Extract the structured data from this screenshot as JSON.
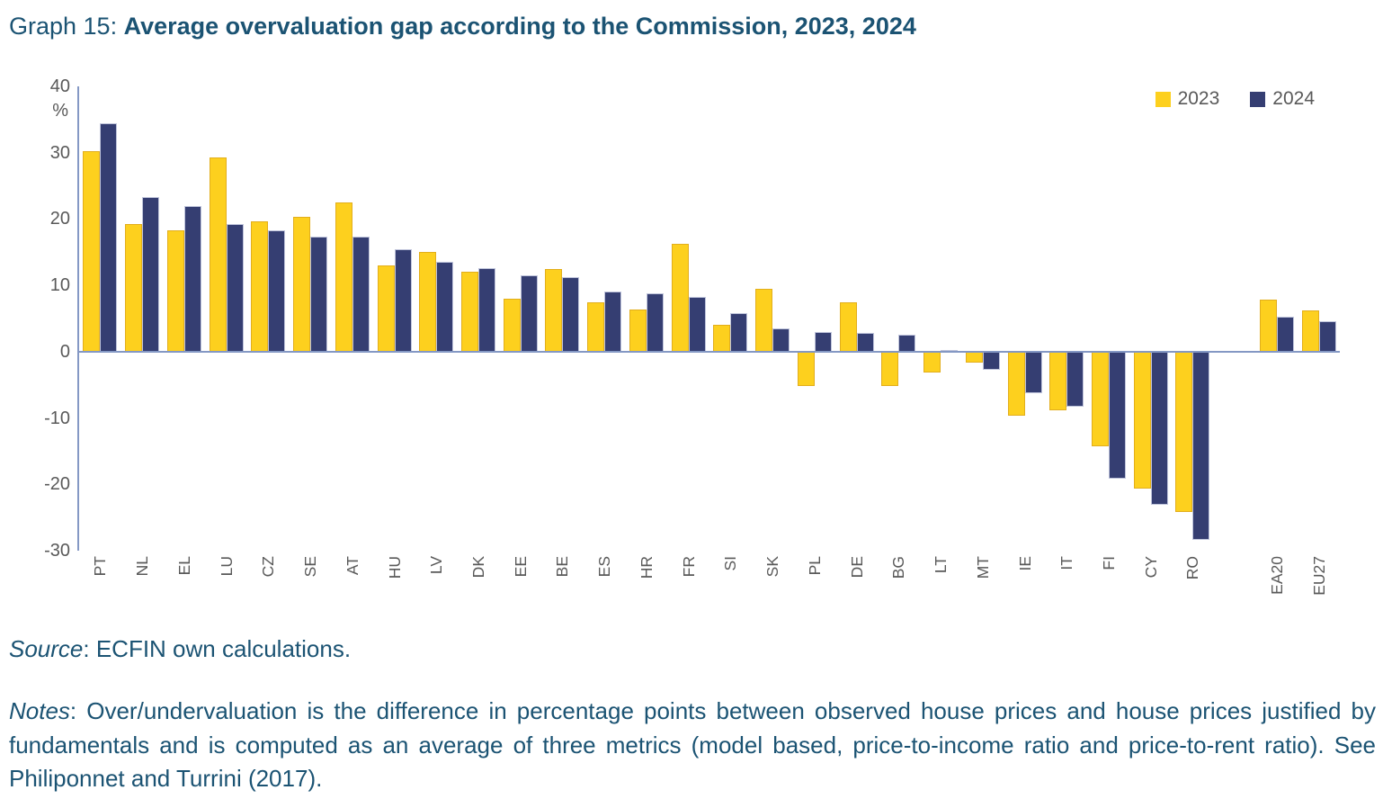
{
  "title": {
    "prefix": "Graph 15: ",
    "main": "Average overvaluation gap according to the Commission, 2023, 2024"
  },
  "chart_data": {
    "type": "bar",
    "categories": [
      "PT",
      "NL",
      "EL",
      "LU",
      "CZ",
      "SE",
      "AT",
      "HU",
      "LV",
      "DK",
      "EE",
      "BE",
      "ES",
      "HR",
      "FR",
      "SI",
      "SK",
      "PL",
      "DE",
      "BG",
      "LT",
      "MT",
      "IE",
      "IT",
      "FI",
      "CY",
      "RO",
      "EA20",
      "EU27"
    ],
    "series": [
      {
        "name": "2023",
        "color": "#FDD01E",
        "values": [
          30.2,
          19.3,
          18.3,
          29.3,
          19.7,
          20.3,
          22.5,
          13.0,
          15.0,
          12.1,
          8.0,
          12.5,
          7.5,
          6.4,
          16.3,
          4.0,
          9.5,
          -5.2,
          7.4,
          -5.2,
          -3.2,
          -1.7,
          -9.6,
          -8.8,
          -14.3,
          -20.7,
          -24.2,
          7.9,
          6.2
        ]
      },
      {
        "name": "2024",
        "color": "#353E72",
        "values": [
          34.4,
          23.3,
          22.0,
          19.2,
          18.3,
          17.4,
          17.3,
          15.4,
          13.6,
          12.6,
          11.5,
          11.3,
          9.1,
          8.8,
          8.2,
          5.8,
          3.5,
          2.9,
          2.8,
          2.5,
          0.2,
          -2.8,
          -6.3,
          -8.3,
          -19.1,
          -23.1,
          -28.4,
          5.3,
          4.6
        ]
      }
    ],
    "ylabel": "%",
    "ylim": [
      -30,
      40
    ],
    "yticks": [
      40,
      30,
      20,
      10,
      0,
      -10,
      -20,
      -30
    ],
    "grid": false,
    "legend_position": "top-right",
    "gap_before_index": 27,
    "axis_color": "#8498C4",
    "tick_color": "#595959"
  },
  "source": {
    "label": "Source",
    "text": ": ECFIN own calculations."
  },
  "notes": {
    "label": "Notes",
    "text": ": Over/undervaluation is the difference in percentage points between observed house prices and house prices justified by fundamentals and is computed as an average of three metrics (model based, price-to-income ratio and price-to-rent ratio). See Philiponnet and Turrini (2017)."
  }
}
